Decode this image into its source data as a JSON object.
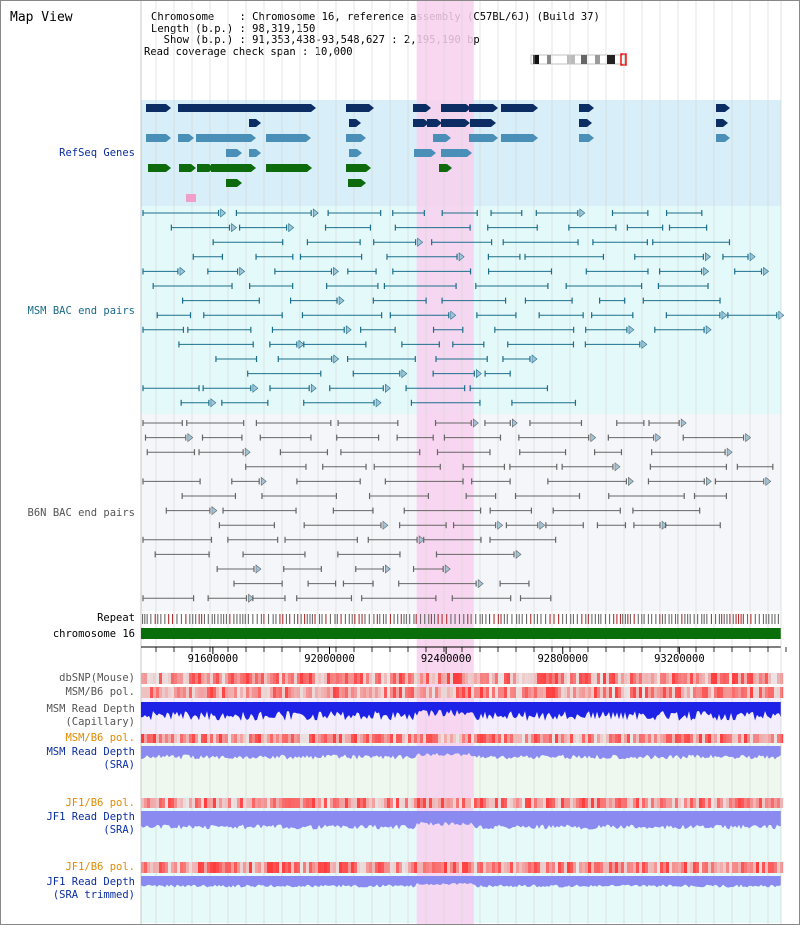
{
  "title": "Map View",
  "header": {
    "line1": "Chromosome    : Chromosome 16, reference assembly (C57BL/6J) (Build 37)",
    "line2": "Length (b.p.) : 98,319,150",
    "line3": "Show (b.p.) : 91,353,438-93,548,627 : 2,195,190 bp",
    "line4": "Read coverage check span : 10,000"
  },
  "tracks": {
    "refseq": "RefSeq Genes",
    "msm_bac": "MSM BAC end pairs",
    "b6n_bac": "B6N BAC end pairs",
    "repeat": "Repeat",
    "chromosome": "chromosome 16",
    "dbsnp": "dbSNP(Mouse)",
    "msm_b6_pol": "MSM/B6 pol.",
    "msm_depth_cap_1": "MSM Read Depth",
    "msm_depth_cap_2": "(Capillary)",
    "msm_b6_pol_2": "MSM/B6 pol.",
    "msm_depth_sra_1": "MSM Read Depth",
    "msm_depth_sra_2": "(SRA)",
    "jf1_b6_pol": "JF1/B6 pol.",
    "jf1_depth_sra_1": "JF1 Read Depth",
    "jf1_depth_sra_2": "(SRA)",
    "jf1_b6_pol_2": "JF1/B6 pol.",
    "jf1_depth_trim_1": "JF1 Read Depth",
    "jf1_depth_trim_2": "(SRA trimmed)"
  },
  "axis": {
    "ticks": [
      "91600000",
      "92000000",
      "92400000",
      "92800000",
      "93200000"
    ],
    "tick_values": [
      91600000,
      92000000,
      92400000,
      92800000,
      93200000
    ],
    "range": [
      91353438,
      93548627
    ]
  },
  "highlight": {
    "start": 92299000,
    "end": 92495000
  },
  "colors": {
    "refseq_bg": "#d8eef8",
    "msm_bg": "#e4fafa",
    "b6n_bg": "#f5f6fa",
    "highlight": "#f8d0ee",
    "gene_navy": "#0b2d63",
    "gene_steel": "#4a8fb8",
    "gene_green": "#0d6b0d",
    "msm_line": "#1c6f8c",
    "b6n_line": "#666666",
    "chrom": "#0a6e0a",
    "depth_blue": "#1e22e6",
    "depth_lavender": "#8a8af0"
  }
}
